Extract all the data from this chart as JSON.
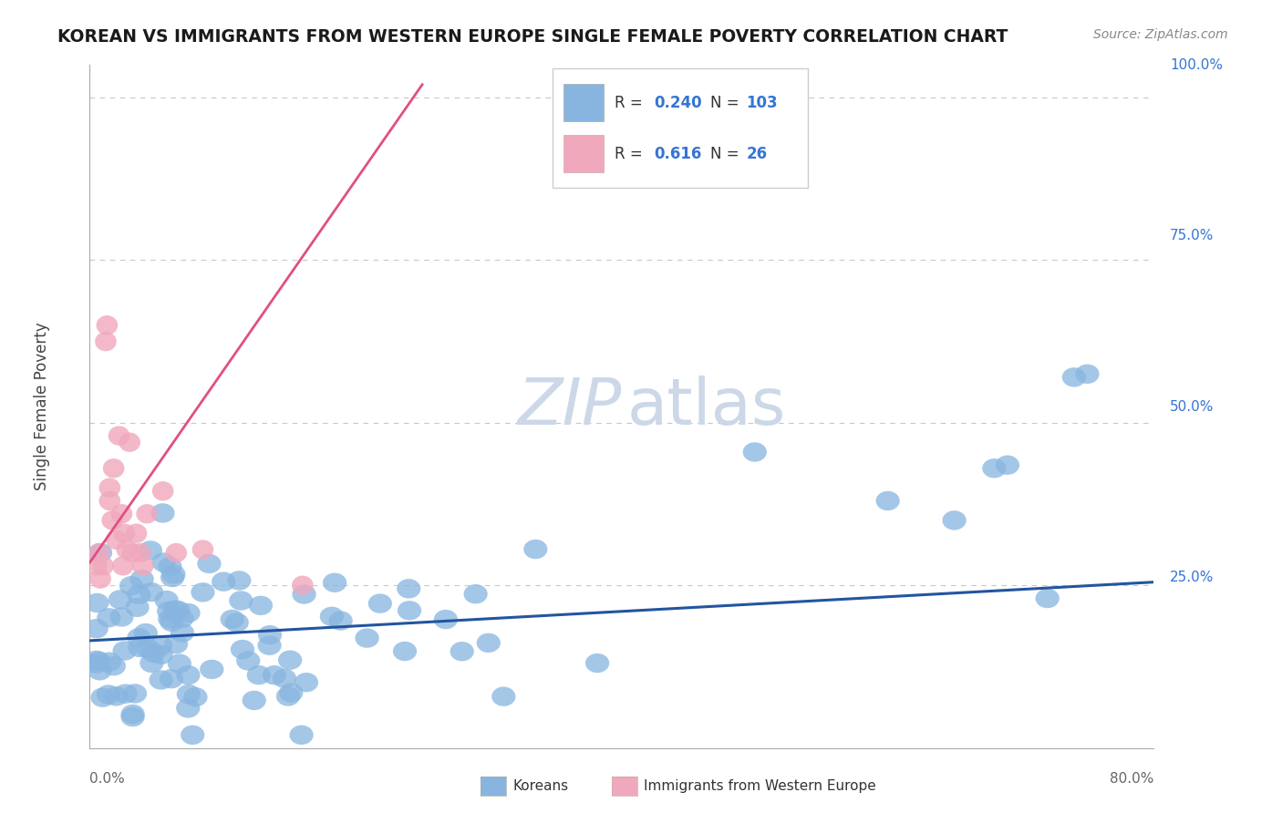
{
  "title": "KOREAN VS IMMIGRANTS FROM WESTERN EUROPE SINGLE FEMALE POVERTY CORRELATION CHART",
  "source": "Source: ZipAtlas.com",
  "ylabel": "Single Female Poverty",
  "xlim": [
    0.0,
    0.8
  ],
  "ylim": [
    0.0,
    1.05
  ],
  "korean_color": "#87b5e0",
  "western_color": "#f0a8bc",
  "korean_edge_color": "#6090c0",
  "western_edge_color": "#d07090",
  "korean_line_color": "#2255a0",
  "western_line_color": "#e05080",
  "korean_R": 0.24,
  "korean_N": 103,
  "western_R": 0.616,
  "western_N": 26,
  "legend_color": "#3575d4",
  "background_color": "#ffffff",
  "grid_color": "#c8c8c8",
  "watermark_color": "#ccd8e8",
  "title_color": "#1a1a1a",
  "source_color": "#888888",
  "axis_label_color": "#3575d4",
  "tick_label_color": "#666666",
  "korean_line_x0": 0.0,
  "korean_line_y0": 0.165,
  "korean_line_x1": 0.8,
  "korean_line_y1": 0.255,
  "western_line_x0": 0.0,
  "western_line_y0": 0.285,
  "western_line_x1": 0.25,
  "western_line_y1": 1.02
}
